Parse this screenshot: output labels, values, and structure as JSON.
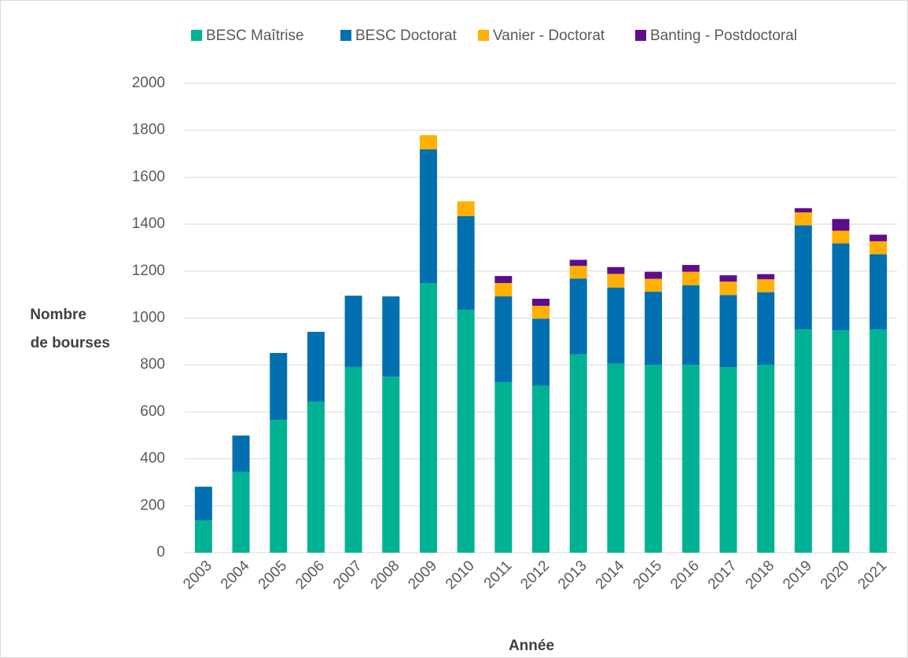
{
  "chart_data": {
    "type": "stacked_bar",
    "y_label": [
      "Nombre",
      "de bourses"
    ],
    "x_label": "Année",
    "categories": [
      "2003",
      "2004",
      "2005",
      "2006",
      "2007",
      "2008",
      "2009",
      "2010",
      "2011",
      "2012",
      "2013",
      "2014",
      "2015",
      "2016",
      "2017",
      "2018",
      "2019",
      "2020",
      "2021"
    ],
    "series": [
      {
        "name": "BESC Maîtrise",
        "color": "#00b294",
        "values": [
          137,
          345,
          566,
          643,
          791,
          750,
          1149,
          1035,
          727,
          712,
          846,
          806,
          800,
          800,
          790,
          800,
          951,
          948,
          951
        ]
      },
      {
        "name": "BESC Doctorat",
        "color": "#0070b0",
        "values": [
          144,
          154,
          285,
          298,
          304,
          342,
          570,
          399,
          365,
          285,
          322,
          324,
          312,
          340,
          308,
          310,
          444,
          370,
          321
        ]
      },
      {
        "name": "Vanier - Doctorat",
        "color": "#ffb000",
        "values": [
          0,
          0,
          0,
          0,
          0,
          0,
          60,
          63,
          57,
          55,
          54,
          58,
          55,
          57,
          57,
          55,
          55,
          54,
          55
        ]
      },
      {
        "name": "Banting - Postdoctoral",
        "color": "#5c0d8c",
        "values": [
          0,
          0,
          0,
          0,
          0,
          0,
          0,
          0,
          30,
          30,
          26,
          29,
          30,
          29,
          27,
          22,
          18,
          50,
          28
        ]
      }
    ],
    "ylim": [
      0,
      2000
    ],
    "yticks": [
      0,
      200,
      400,
      600,
      800,
      1000,
      1200,
      1400,
      1600,
      1800,
      2000
    ],
    "grid": true,
    "legend": "top"
  }
}
